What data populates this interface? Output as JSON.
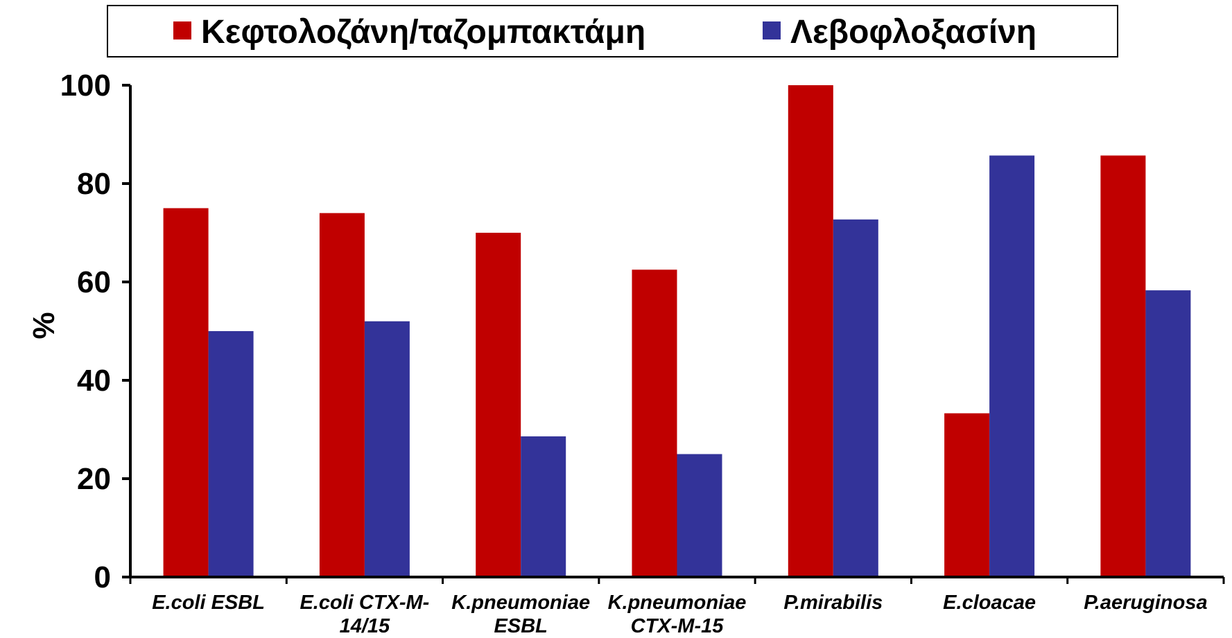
{
  "chart_data": {
    "type": "bar",
    "categories": [
      [
        "E.coli ESBL"
      ],
      [
        "E.coli CTX-M-",
        "14/15"
      ],
      [
        "K.pneumoniae",
        "ESBL"
      ],
      [
        "K.pneumoniae",
        "CTX-M-15"
      ],
      [
        "P.mirabilis"
      ],
      [
        "E.cloacae"
      ],
      [
        "P.aeruginosa"
      ]
    ],
    "series": [
      {
        "name": "Κεφτολοζάνη/ταζομπακτάμη",
        "color": "#c00000",
        "values": [
          75.0,
          74.0,
          70.0,
          62.5,
          100.0,
          33.3,
          85.7
        ]
      },
      {
        "name": "Λεβοφλοξασίνη",
        "color": "#333399",
        "values": [
          50.0,
          52.0,
          28.6,
          25.0,
          72.7,
          85.7,
          58.3
        ]
      }
    ],
    "ylabel": "%",
    "xlabel": "",
    "ylim": [
      0,
      100
    ],
    "yticks": [
      "0",
      "20",
      "40",
      "60",
      "80",
      "100"
    ],
    "grid": false,
    "legend_position": "top"
  }
}
